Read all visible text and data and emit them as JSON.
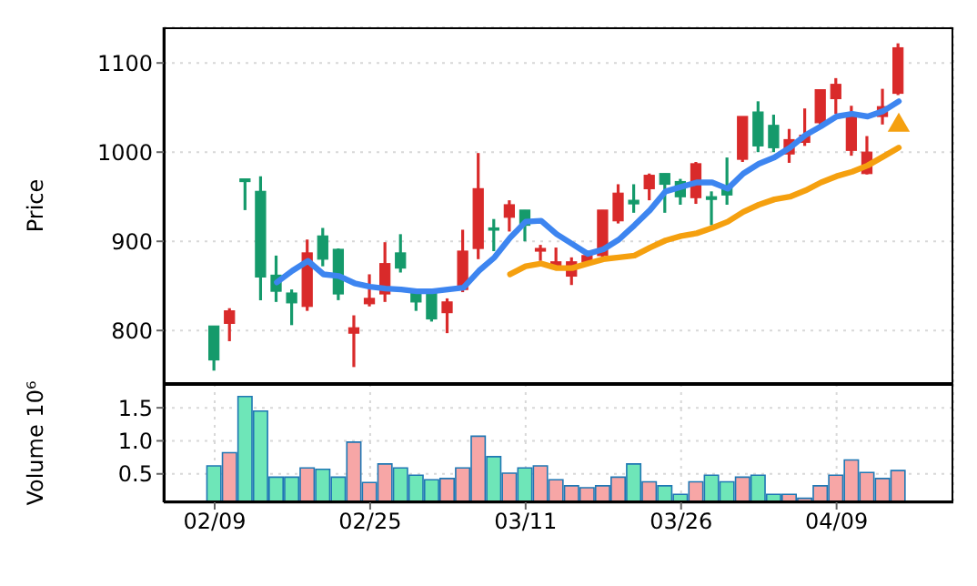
{
  "chart_data": [
    {
      "type": "candlestick",
      "ylabel": "Price",
      "categories": [
        null,
        null,
        null,
        null,
        null,
        null,
        null,
        null,
        null,
        null,
        null,
        null,
        null,
        null,
        null,
        null,
        null,
        null,
        null,
        null,
        null,
        null,
        null,
        null,
        null,
        null,
        null,
        null,
        null,
        null,
        null,
        null,
        null,
        null,
        null,
        null,
        null,
        null,
        null,
        null,
        null,
        null,
        null,
        null,
        null
      ],
      "tick_labels": "y",
      "ylim": [
        740,
        1140
      ],
      "yticks": [
        800,
        900,
        1000,
        1100
      ],
      "grid": true,
      "series": [
        {
          "type": "candlestick",
          "ohlc": [
            [
              767,
              805,
              755,
              805
            ],
            [
              822,
              825,
              788,
              808
            ],
            [
              967,
              970,
              935,
              970
            ],
            [
              860,
              973,
              834,
              956
            ],
            [
              844,
              884,
              832,
              862
            ],
            [
              831,
              846,
              806,
              842
            ],
            [
              887,
              902,
              822,
              827
            ],
            [
              880,
              915,
              872,
              906
            ],
            [
              841,
              892,
              834,
              891
            ],
            [
              803,
              817,
              759,
              797
            ],
            [
              836,
              863,
              827,
              830
            ],
            [
              875,
              899,
              832,
              841
            ],
            [
              870,
              908,
              865,
              887
            ],
            [
              832,
              846,
              822,
              845
            ],
            [
              813,
              845,
              810,
              844
            ],
            [
              832,
              836,
              797,
              820
            ],
            [
              889,
              913,
              843,
              846
            ],
            [
              959,
              999,
              880,
              892
            ],
            [
              913,
              925,
              889,
              915
            ],
            [
              941,
              946,
              911,
              927
            ],
            [
              918,
              935,
              900,
              935
            ],
            [
              892,
              896,
              878,
              889
            ],
            [
              877,
              893,
              870,
              873
            ],
            [
              877,
              882,
              851,
              861
            ],
            [
              884,
              886,
              873,
              877
            ],
            [
              935,
              935,
              880,
              884
            ],
            [
              954,
              964,
              920,
              923
            ],
            [
              942,
              964,
              932,
              946
            ],
            [
              974,
              976,
              946,
              959
            ],
            [
              964,
              976,
              932,
              976
            ],
            [
              950,
              970,
              941,
              967
            ],
            [
              987,
              989,
              942,
              949
            ],
            [
              947,
              956,
              918,
              950
            ],
            [
              952,
              994,
              941,
              961
            ],
            [
              1040,
              1040,
              989,
              992
            ],
            [
              1007,
              1057,
              1000,
              1045
            ],
            [
              1005,
              1042,
              1000,
              1030
            ],
            [
              1014,
              1026,
              988,
              998
            ],
            [
              1019,
              1049,
              1007,
              1011
            ],
            [
              1070,
              1070,
              1030,
              1033
            ],
            [
              1076,
              1083,
              1043,
              1060
            ],
            [
              1040,
              1052,
              996,
              1002
            ],
            [
              1000,
              1018,
              975,
              976
            ],
            [
              1051,
              1071,
              1031,
              1040
            ],
            [
              1117,
              1122,
              1064,
              1066
            ]
          ],
          "colors": [
            "#159a6b",
            "#d92a2a",
            "#159a6b",
            "#159a6b",
            "#159a6b",
            "#159a6b",
            "#d92a2a",
            "#159a6b",
            "#159a6b",
            "#d92a2a",
            "#d92a2a",
            "#d92a2a",
            "#159a6b",
            "#159a6b",
            "#159a6b",
            "#d92a2a",
            "#d92a2a",
            "#d92a2a",
            "#159a6b",
            "#d92a2a",
            "#159a6b",
            "#d92a2a",
            "#d92a2a",
            "#d92a2a",
            "#d92a2a",
            "#d92a2a",
            "#d92a2a",
            "#159a6b",
            "#d92a2a",
            "#159a6b",
            "#159a6b",
            "#d92a2a",
            "#159a6b",
            "#159a6b",
            "#d92a2a",
            "#159a6b",
            "#159a6b",
            "#d92a2a",
            "#d92a2a",
            "#d92a2a",
            "#d92a2a",
            "#d92a2a",
            "#d92a2a",
            "#d92a2a",
            "#d92a2a"
          ]
        },
        {
          "type": "line",
          "color": "#3d85f0",
          "values": [
            null,
            null,
            null,
            null,
            854,
            867,
            878,
            863,
            861,
            853,
            849,
            847,
            846,
            844,
            844,
            846,
            848,
            867,
            882,
            904,
            922,
            923,
            908,
            897,
            886,
            891,
            902,
            918,
            935,
            956,
            961,
            966,
            966,
            959,
            976,
            987,
            994,
            1005,
            1019,
            1029,
            1040,
            1043,
            1040,
            1046,
            1057
          ]
        },
        {
          "type": "line",
          "color": "#f5a00f",
          "values": [
            null,
            null,
            null,
            null,
            null,
            null,
            null,
            null,
            null,
            null,
            null,
            null,
            null,
            null,
            null,
            null,
            null,
            null,
            null,
            863,
            872,
            875,
            870,
            870,
            875,
            880,
            882,
            884,
            893,
            901,
            906,
            909,
            915,
            922,
            933,
            941,
            947,
            950,
            957,
            966,
            973,
            978,
            985,
            995,
            1005
          ]
        },
        {
          "type": "scatter",
          "marker": "triangle",
          "color": "#f5a00f",
          "values": [
            null,
            null,
            null,
            null,
            null,
            null,
            null,
            null,
            null,
            null,
            null,
            null,
            null,
            null,
            null,
            null,
            null,
            null,
            null,
            null,
            null,
            null,
            null,
            null,
            null,
            null,
            null,
            null,
            null,
            null,
            null,
            null,
            null,
            null,
            null,
            null,
            null,
            null,
            null,
            null,
            null,
            null,
            null,
            null,
            1030
          ]
        }
      ]
    },
    {
      "type": "bar",
      "ylabel": "Volume  10⁶",
      "categories": [
        "02/09",
        null,
        null,
        null,
        null,
        null,
        null,
        null,
        null,
        null,
        "02/25",
        null,
        null,
        null,
        null,
        null,
        null,
        null,
        null,
        null,
        "03/11",
        null,
        null,
        null,
        null,
        null,
        null,
        null,
        null,
        null,
        "03/26",
        null,
        null,
        null,
        null,
        null,
        null,
        null,
        null,
        null,
        "04/09",
        null,
        null,
        null,
        null
      ],
      "ylim": [
        0.07,
        1.86
      ],
      "yticks": [
        0.5,
        {
          "value": 1,
          "label": "1.0"
        },
        1.5
      ],
      "grid": true,
      "values": [
        0.62,
        0.82,
        1.67,
        1.45,
        0.45,
        0.45,
        0.59,
        0.57,
        0.45,
        0.98,
        0.37,
        0.65,
        0.59,
        0.48,
        0.41,
        0.43,
        0.59,
        1.07,
        0.76,
        0.51,
        0.59,
        0.62,
        0.41,
        0.32,
        0.29,
        0.32,
        0.45,
        0.65,
        0.38,
        0.32,
        0.19,
        0.38,
        0.48,
        0.38,
        0.45,
        0.48,
        0.19,
        0.19,
        0.13,
        0.32,
        0.48,
        0.71,
        0.52,
        0.43,
        0.55
      ],
      "colors": [
        "#6ee6b8",
        "#f7a6a6",
        "#6ee6b8",
        "#6ee6b8",
        "#6ee6b8",
        "#6ee6b8",
        "#f7a6a6",
        "#6ee6b8",
        "#6ee6b8",
        "#f7a6a6",
        "#f7a6a6",
        "#f7a6a6",
        "#6ee6b8",
        "#6ee6b8",
        "#6ee6b8",
        "#f7a6a6",
        "#f7a6a6",
        "#f7a6a6",
        "#6ee6b8",
        "#f7a6a6",
        "#6ee6b8",
        "#f7a6a6",
        "#f7a6a6",
        "#f7a6a6",
        "#f7a6a6",
        "#f7a6a6",
        "#f7a6a6",
        "#6ee6b8",
        "#f7a6a6",
        "#6ee6b8",
        "#6ee6b8",
        "#f7a6a6",
        "#6ee6b8",
        "#6ee6b8",
        "#f7a6a6",
        "#6ee6b8",
        "#6ee6b8",
        "#f7a6a6",
        "#f7a6a6",
        "#f7a6a6",
        "#f7a6a6",
        "#f7a6a6",
        "#f7a6a6",
        "#f7a6a6",
        "#f7a6a6"
      ]
    }
  ]
}
